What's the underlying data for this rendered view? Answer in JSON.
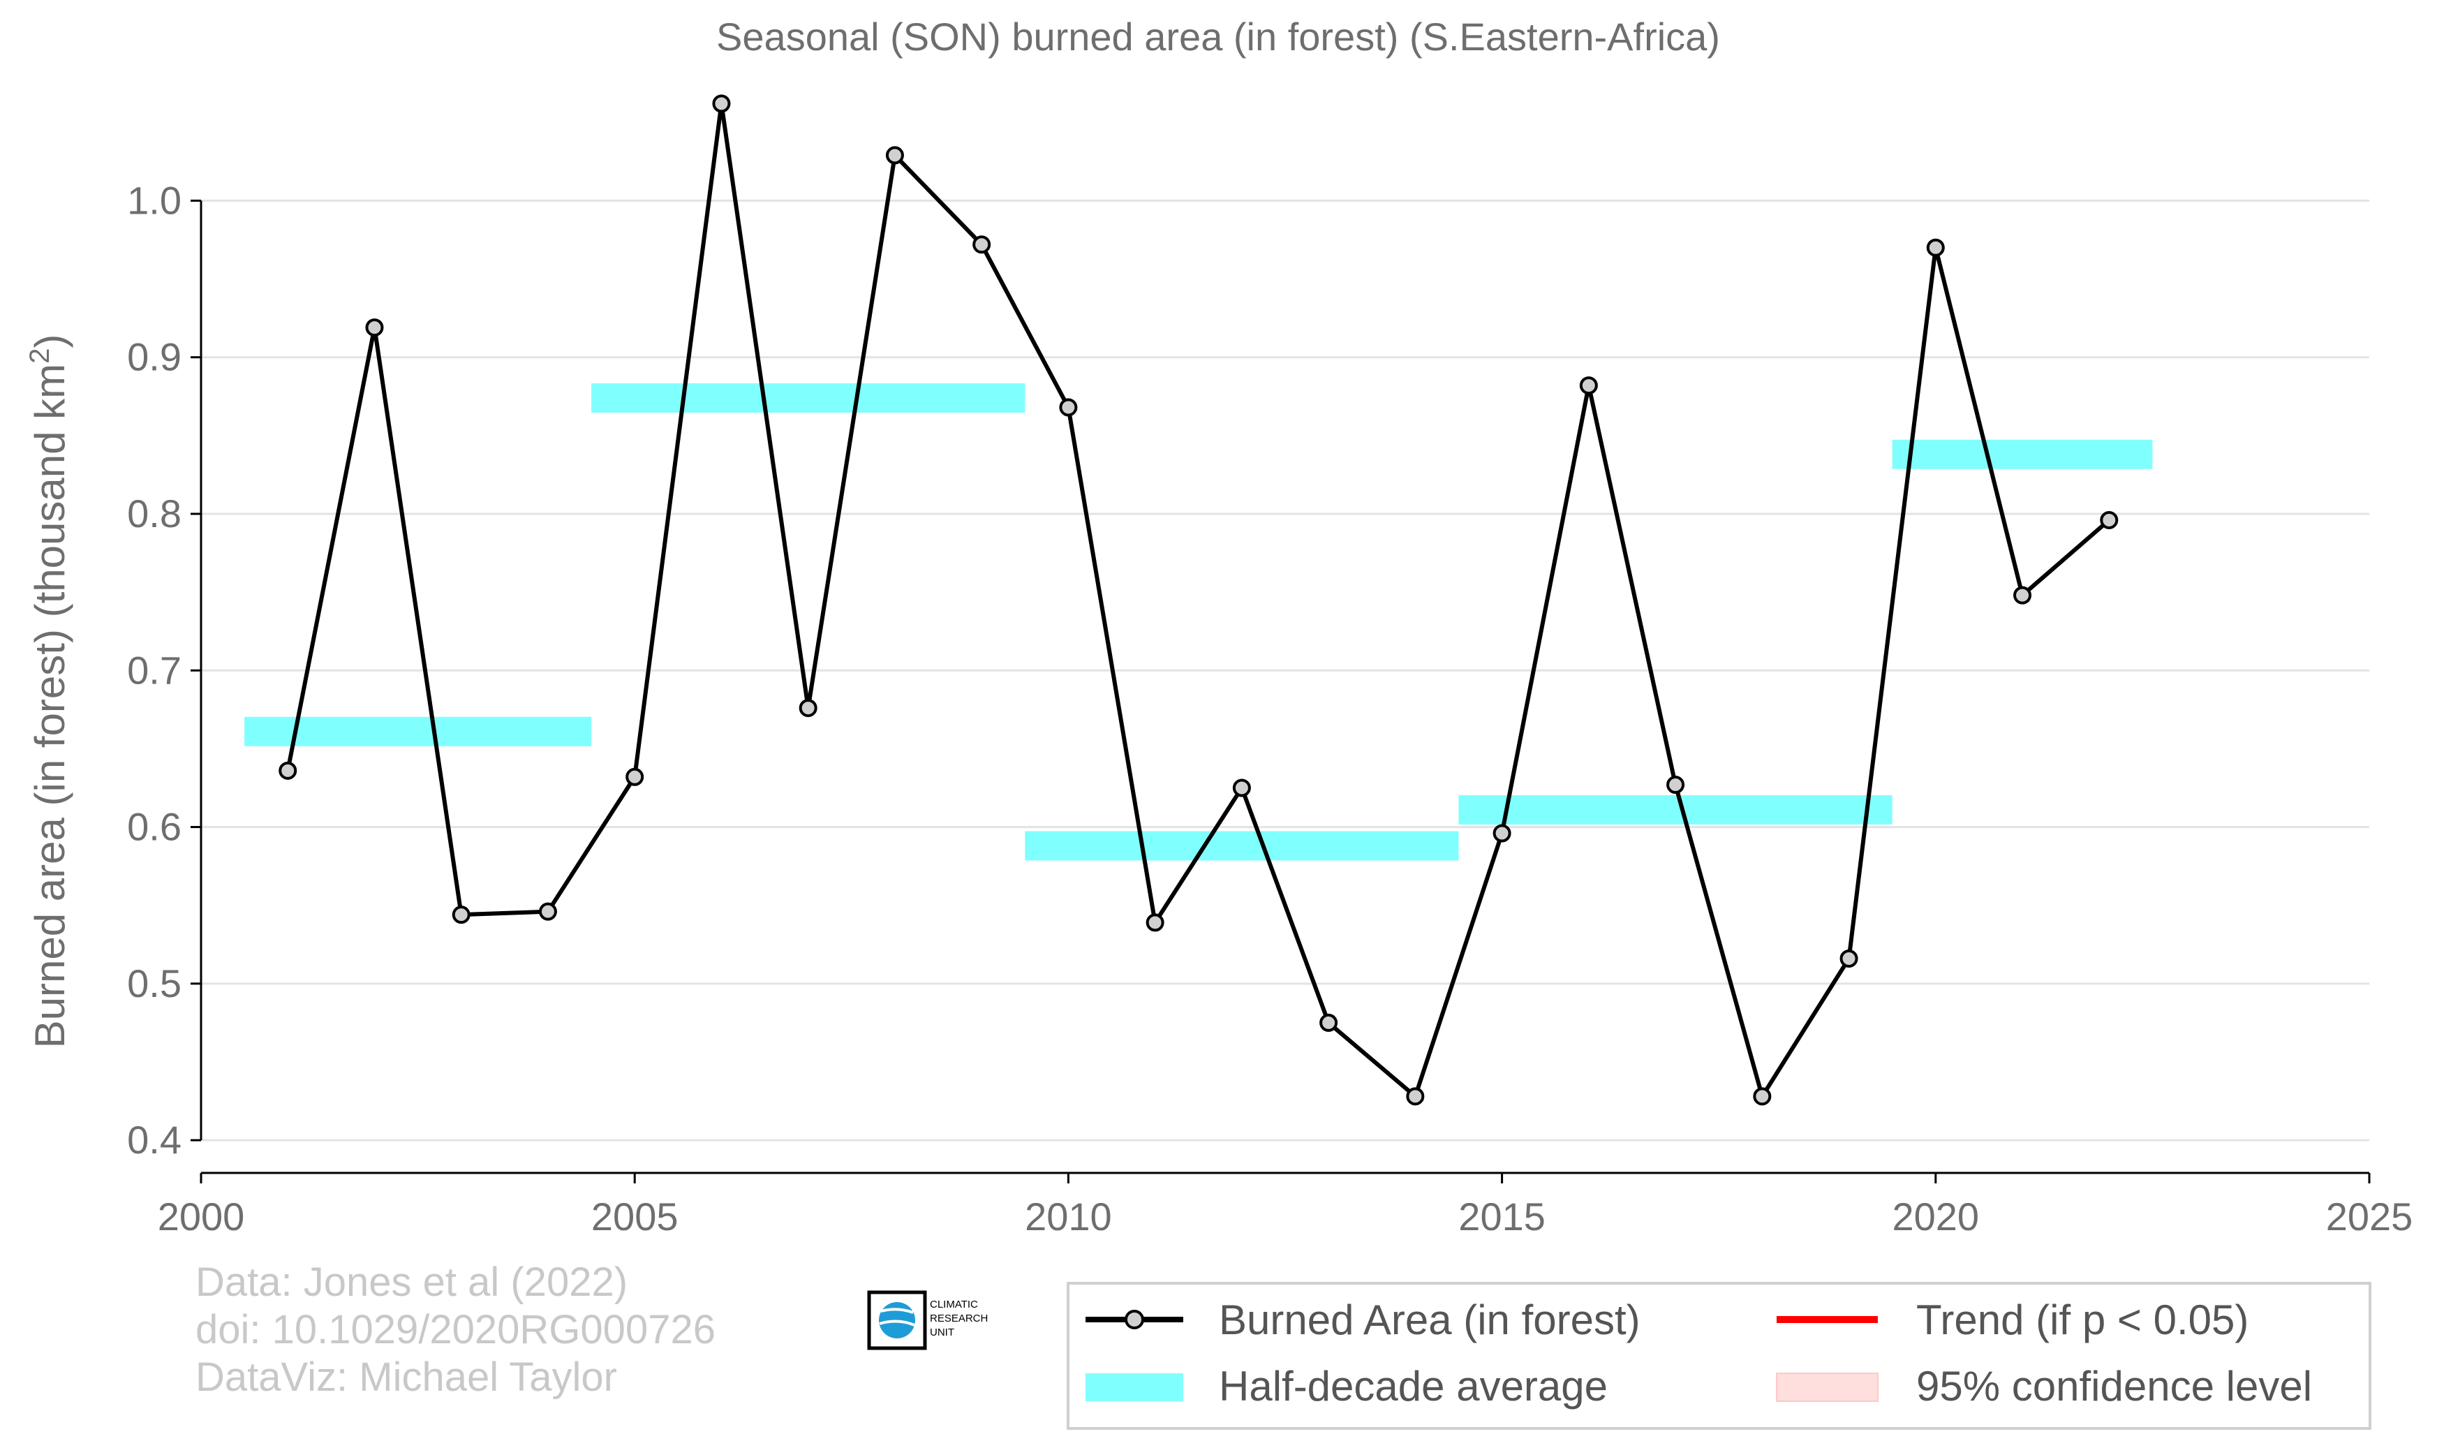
{
  "chart_data": {
    "type": "line",
    "title": "Seasonal (SON) burned area (in forest) (S.Eastern-Africa)",
    "ylabel": "Burned area (in forest) (thousand km",
    "ylabel_sup": "2",
    "ylabel_close": ")",
    "xlabel": "",
    "xlim": [
      2000,
      2025
    ],
    "ylim": [
      0.38,
      1.08
    ],
    "xticks": [
      "2000",
      "2005",
      "2010",
      "2015",
      "2020",
      "2025"
    ],
    "yticks": [
      "0.4",
      "0.5",
      "0.6",
      "0.7",
      "0.8",
      "0.9",
      "1.0"
    ],
    "grid": "horizontal",
    "legend_position": "bottom-right",
    "series": [
      {
        "name": "Burned Area (in forest)",
        "color": "#000000",
        "marker_fill": "#d0d0d0",
        "x": [
          2001,
          2002,
          2003,
          2004,
          2005,
          2006,
          2007,
          2008,
          2009,
          2010,
          2011,
          2012,
          2013,
          2014,
          2015,
          2016,
          2017,
          2018,
          2019,
          2020,
          2021,
          2022
        ],
        "y": [
          0.636,
          0.919,
          0.544,
          0.546,
          0.632,
          1.062,
          0.676,
          1.029,
          0.972,
          0.868,
          0.539,
          0.625,
          0.475,
          0.428,
          0.596,
          0.882,
          0.627,
          0.428,
          0.516,
          0.97,
          0.748,
          0.796
        ]
      }
    ],
    "half_decade_averages": {
      "name": "Half-decade average",
      "color": "#80ffff",
      "segments": [
        {
          "x_start": 2000.5,
          "x_end": 2004.5,
          "value": 0.661
        },
        {
          "x_start": 2004.5,
          "x_end": 2009.5,
          "value": 0.874
        },
        {
          "x_start": 2009.5,
          "x_end": 2014.5,
          "value": 0.588
        },
        {
          "x_start": 2014.5,
          "x_end": 2019.5,
          "value": 0.611
        },
        {
          "x_start": 2019.5,
          "x_end": 2022.5,
          "value": 0.838
        }
      ]
    },
    "trend": {
      "name": "Trend (if p < 0.05)",
      "color": "#ff0000"
    },
    "confidence": {
      "name": "95% confidence level",
      "color": "#ffdede"
    }
  },
  "credits": {
    "line1": "Data: Jones et al (2022)",
    "line2": "doi: 10.1029/2020RG000726",
    "line3": "DataViz: Michael Taylor"
  },
  "logo": {
    "line1": "CLIMATIC",
    "line2": "RESEARCH",
    "line3": "UNIT"
  },
  "legend": {
    "items": [
      "Burned Area (in forest)",
      "Trend (if p < 0.05)",
      "Half-decade average",
      "95% confidence level"
    ]
  }
}
